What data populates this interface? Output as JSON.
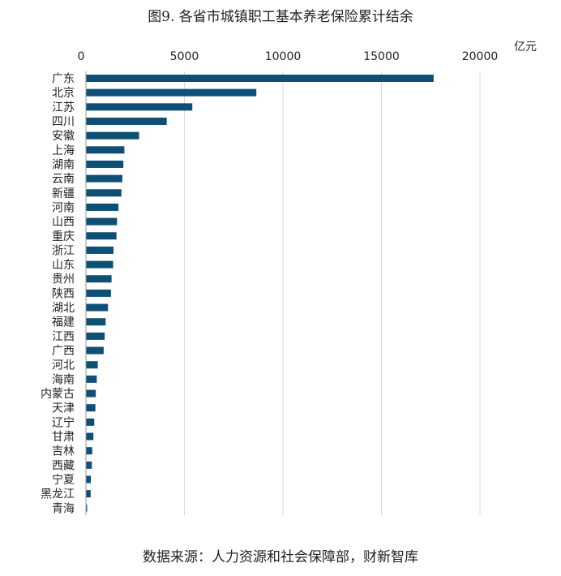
{
  "chart_data": {
    "type": "bar",
    "orientation": "horizontal",
    "title": "图9. 各省市城镇职工基本养老保险累计结余",
    "unit": "亿元",
    "xlim": [
      0,
      20000
    ],
    "xticks": [
      0,
      5000,
      10000,
      15000,
      20000
    ],
    "grid": true,
    "categories": [
      "广东",
      "北京",
      "江苏",
      "四川",
      "安徽",
      "上海",
      "湖南",
      "云南",
      "新疆",
      "河南",
      "山西",
      "重庆",
      "浙江",
      "山东",
      "贵州",
      "陕西",
      "湖北",
      "福建",
      "江西",
      "广西",
      "河北",
      "海南",
      "内蒙古",
      "天津",
      "辽宁",
      "甘肃",
      "吉林",
      "西藏",
      "宁夏",
      "黑龙江",
      "青海"
    ],
    "values": [
      17650,
      8650,
      5400,
      4100,
      2700,
      1950,
      1900,
      1850,
      1800,
      1650,
      1580,
      1550,
      1400,
      1380,
      1300,
      1270,
      1120,
      1000,
      950,
      900,
      600,
      550,
      500,
      480,
      420,
      380,
      320,
      300,
      250,
      240,
      60
    ],
    "color": "#0d4f75",
    "source": "数据来源：人力资源和社会保障部，财新智库"
  }
}
